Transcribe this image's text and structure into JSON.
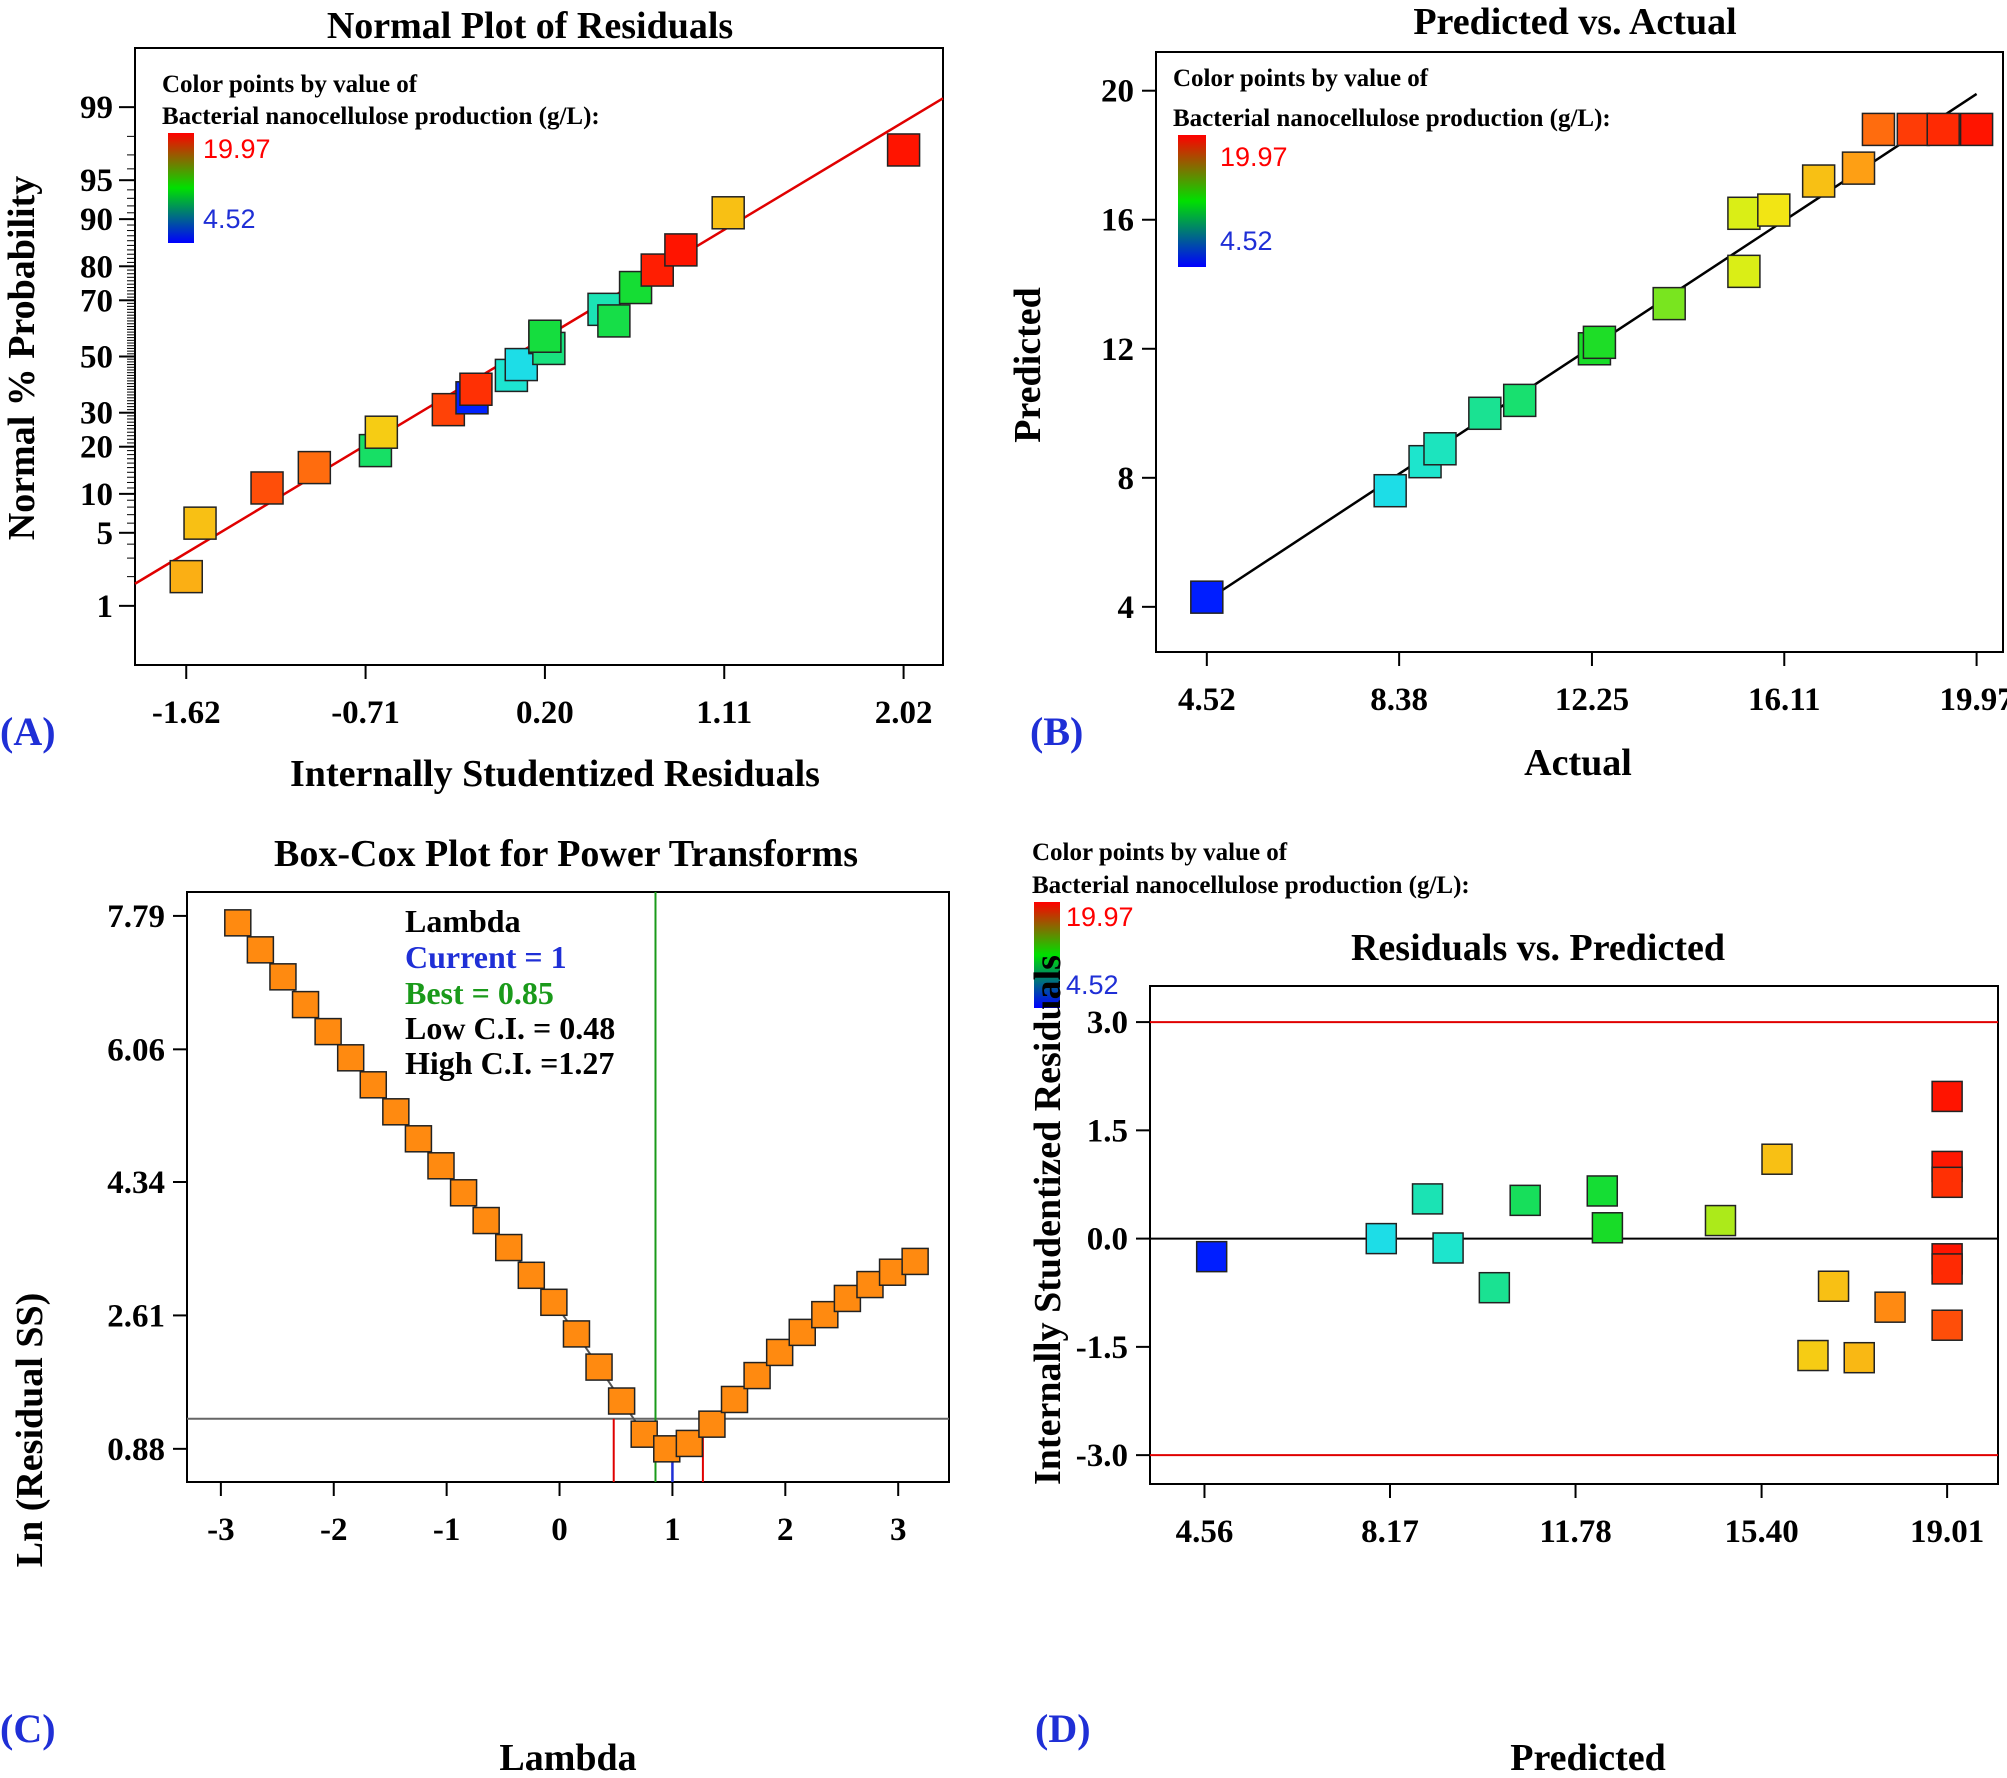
{
  "legend": {
    "title_line1": "Color points by value of",
    "title_line2": "Bacterial nanocellulose production (g/L):",
    "max": "19.97",
    "min": "4.52"
  },
  "colors": {
    "low": "#0000ff",
    "mid": "#00e000",
    "high": "#ff0000",
    "fit_line_A": "#e00000",
    "fit_line_B": "#000000",
    "boxcox_marker": "#ff8a10",
    "blue_label": "#1f2fd6",
    "green_label": "#1a9a1a"
  },
  "chart_data": [
    {
      "panel": "A",
      "type": "scatter",
      "title": "Normal Plot of Residuals",
      "xlabel": "Internally Studentized Residuals",
      "ylabel": "Normal % Probability",
      "x_ticks": [
        "-1.62",
        "-0.71",
        "0.20",
        "1.11",
        "2.02"
      ],
      "y_ticks": [
        "1",
        "5",
        "10",
        "20",
        "30",
        "50",
        "70",
        "80",
        "90",
        "95",
        "99"
      ],
      "xlim": [
        -1.88,
        2.22
      ],
      "ylim_probability": [
        0.2,
        99.8
      ],
      "y_scale": "normal-probability",
      "reference_line": {
        "x": [
          -1.88,
          2.22
        ],
        "p": [
          1.7,
          99.2
        ]
      },
      "points": [
        {
          "x": -1.62,
          "p": 2.0,
          "value": 17.2
        },
        {
          "x": -1.55,
          "p": 6.0,
          "value": 16.8
        },
        {
          "x": -1.21,
          "p": 11.0,
          "value": 19.0
        },
        {
          "x": -0.97,
          "p": 15.0,
          "value": 18.5
        },
        {
          "x": -0.66,
          "p": 19.0,
          "value": 11.0
        },
        {
          "x": -0.63,
          "p": 24.0,
          "value": 16.5
        },
        {
          "x": -0.29,
          "p": 31.0,
          "value": 19.2
        },
        {
          "x": -0.17,
          "p": 35.0,
          "value": 4.6
        },
        {
          "x": -0.15,
          "p": 38.0,
          "value": 19.5
        },
        {
          "x": 0.03,
          "p": 43.0,
          "value": 8.8
        },
        {
          "x": 0.08,
          "p": 47.0,
          "value": 8.2
        },
        {
          "x": 0.2,
          "p": 57.0,
          "value": 13.8
        },
        {
          "x": 0.22,
          "p": 53.0,
          "value": 10.5
        },
        {
          "x": 0.2,
          "p": 57.5,
          "value": 11.8
        },
        {
          "x": 0.5,
          "p": 67.0,
          "value": 9.4
        },
        {
          "x": 0.55,
          "p": 63.0,
          "value": 11.6
        },
        {
          "x": 0.66,
          "p": 74.0,
          "value": 12.0
        },
        {
          "x": 0.77,
          "p": 79.0,
          "value": 19.8
        },
        {
          "x": 0.89,
          "p": 84.0,
          "value": 19.97
        },
        {
          "x": 1.13,
          "p": 91.0,
          "value": 16.8
        },
        {
          "x": 2.02,
          "p": 97.3,
          "value": 19.97
        }
      ]
    },
    {
      "panel": "B",
      "type": "scatter",
      "title": "Predicted vs. Actual",
      "xlabel": "Actual",
      "ylabel": "Predicted",
      "x_ticks": [
        "4.52",
        "8.38",
        "12.25",
        "16.11",
        "19.97"
      ],
      "y_ticks": [
        "4",
        "8",
        "12",
        "16",
        "20"
      ],
      "xlim": [
        3.5,
        20.5
      ],
      "ylim": [
        2.6,
        21.2
      ],
      "reference_line": {
        "x": [
          4.52,
          19.97
        ],
        "y": [
          4.2,
          19.9
        ]
      },
      "points": [
        {
          "x": 4.52,
          "y": 4.3,
          "value": 4.52
        },
        {
          "x": 8.2,
          "y": 7.6,
          "value": 8.2
        },
        {
          "x": 8.9,
          "y": 8.5,
          "value": 8.9
        },
        {
          "x": 9.2,
          "y": 8.9,
          "value": 9.2
        },
        {
          "x": 10.1,
          "y": 10.0,
          "value": 10.1
        },
        {
          "x": 10.8,
          "y": 10.4,
          "value": 10.8
        },
        {
          "x": 12.3,
          "y": 12.0,
          "value": 12.3
        },
        {
          "x": 12.4,
          "y": 12.2,
          "value": 12.4
        },
        {
          "x": 13.8,
          "y": 13.4,
          "value": 13.8
        },
        {
          "x": 15.3,
          "y": 14.4,
          "value": 15.3
        },
        {
          "x": 15.3,
          "y": 16.2,
          "value": 15.3
        },
        {
          "x": 15.9,
          "y": 16.3,
          "value": 15.9
        },
        {
          "x": 16.8,
          "y": 17.2,
          "value": 16.8
        },
        {
          "x": 17.6,
          "y": 17.6,
          "value": 17.6
        },
        {
          "x": 18.0,
          "y": 18.8,
          "value": 18.5
        },
        {
          "x": 18.7,
          "y": 18.8,
          "value": 19.3
        },
        {
          "x": 19.3,
          "y": 18.8,
          "value": 19.6
        },
        {
          "x": 19.97,
          "y": 18.8,
          "value": 19.97
        }
      ]
    },
    {
      "panel": "C",
      "type": "line",
      "title": "Box-Cox Plot for Power Transforms",
      "xlabel": "Lambda",
      "ylabel": "Ln (Residual SS)",
      "x_ticks": [
        "-3",
        "-2",
        "-1",
        "0",
        "1",
        "2",
        "3"
      ],
      "y_ticks": [
        "0.88",
        "2.61",
        "4.34",
        "6.06",
        "7.79"
      ],
      "xlim": [
        -3.3,
        3.45
      ],
      "ylim": [
        0.45,
        8.1
      ],
      "info": {
        "heading": "Lambda",
        "current": "Current = 1",
        "best": "Best = 0.85",
        "low_ci": "Low C.I. = 0.48",
        "high_ci": "High C.I. =1.27"
      },
      "best_lambda": 0.85,
      "current_lambda": 1,
      "ci": [
        0.48,
        1.27
      ],
      "ci_threshold": 1.27,
      "points": [
        {
          "x": -2.85,
          "y": 7.7
        },
        {
          "x": -2.65,
          "y": 7.35
        },
        {
          "x": -2.45,
          "y": 7.0
        },
        {
          "x": -2.25,
          "y": 6.64
        },
        {
          "x": -2.05,
          "y": 6.29
        },
        {
          "x": -1.85,
          "y": 5.95
        },
        {
          "x": -1.65,
          "y": 5.6
        },
        {
          "x": -1.45,
          "y": 5.25
        },
        {
          "x": -1.25,
          "y": 4.9
        },
        {
          "x": -1.05,
          "y": 4.55
        },
        {
          "x": -0.85,
          "y": 4.2
        },
        {
          "x": -0.65,
          "y": 3.84
        },
        {
          "x": -0.45,
          "y": 3.49
        },
        {
          "x": -0.25,
          "y": 3.13
        },
        {
          "x": -0.05,
          "y": 2.78
        },
        {
          "x": 0.15,
          "y": 2.37
        },
        {
          "x": 0.35,
          "y": 1.94
        },
        {
          "x": 0.55,
          "y": 1.5
        },
        {
          "x": 0.75,
          "y": 1.07
        },
        {
          "x": 0.95,
          "y": 0.88
        },
        {
          "x": 1.15,
          "y": 0.95
        },
        {
          "x": 1.35,
          "y": 1.2
        },
        {
          "x": 1.55,
          "y": 1.52
        },
        {
          "x": 1.75,
          "y": 1.83
        },
        {
          "x": 1.95,
          "y": 2.13
        },
        {
          "x": 2.15,
          "y": 2.39
        },
        {
          "x": 2.35,
          "y": 2.62
        },
        {
          "x": 2.55,
          "y": 2.83
        },
        {
          "x": 2.75,
          "y": 3.01
        },
        {
          "x": 2.95,
          "y": 3.17
        },
        {
          "x": 3.15,
          "y": 3.31
        }
      ]
    },
    {
      "panel": "D",
      "type": "scatter",
      "title": "Residuals vs. Predicted",
      "xlabel": "Predicted",
      "ylabel": "Internally Studentized Residuals",
      "x_ticks": [
        "4.56",
        "8.17",
        "11.78",
        "15.40",
        "19.01"
      ],
      "y_ticks": [
        "3.0",
        "1.5",
        "0.0",
        "-1.5",
        "-3.0"
      ],
      "xlim": [
        3.5,
        20.0
      ],
      "ylim": [
        -3.4,
        3.5
      ],
      "limit_lines": [
        3.0,
        -3.0
      ],
      "points": [
        {
          "x": 4.7,
          "y": -0.25,
          "value": 4.52
        },
        {
          "x": 8.0,
          "y": 0.0,
          "value": 8.2
        },
        {
          "x": 8.9,
          "y": 0.55,
          "value": 9.4
        },
        {
          "x": 9.3,
          "y": -0.13,
          "value": 8.9
        },
        {
          "x": 10.2,
          "y": -0.68,
          "value": 10.1
        },
        {
          "x": 10.8,
          "y": 0.53,
          "value": 11.2
        },
        {
          "x": 12.3,
          "y": 0.66,
          "value": 12.0
        },
        {
          "x": 12.4,
          "y": 0.15,
          "value": 12.3
        },
        {
          "x": 14.6,
          "y": 0.25,
          "value": 14.6
        },
        {
          "x": 15.7,
          "y": 1.1,
          "value": 16.8
        },
        {
          "x": 16.4,
          "y": -1.62,
          "value": 16.5
        },
        {
          "x": 16.8,
          "y": -0.66,
          "value": 16.8
        },
        {
          "x": 17.3,
          "y": -1.65,
          "value": 17.0
        },
        {
          "x": 17.9,
          "y": -0.95,
          "value": 18.0
        },
        {
          "x": 19.01,
          "y": 1.97,
          "value": 19.97
        },
        {
          "x": 19.01,
          "y": 1.0,
          "value": 19.9
        },
        {
          "x": 19.01,
          "y": 0.78,
          "value": 19.5
        },
        {
          "x": 19.01,
          "y": -0.28,
          "value": 19.97
        },
        {
          "x": 19.01,
          "y": -0.42,
          "value": 19.6
        },
        {
          "x": 19.01,
          "y": -1.2,
          "value": 19.0
        }
      ]
    }
  ],
  "panel_labels": [
    "(A)",
    "(B)",
    "(C)",
    "(D)"
  ]
}
